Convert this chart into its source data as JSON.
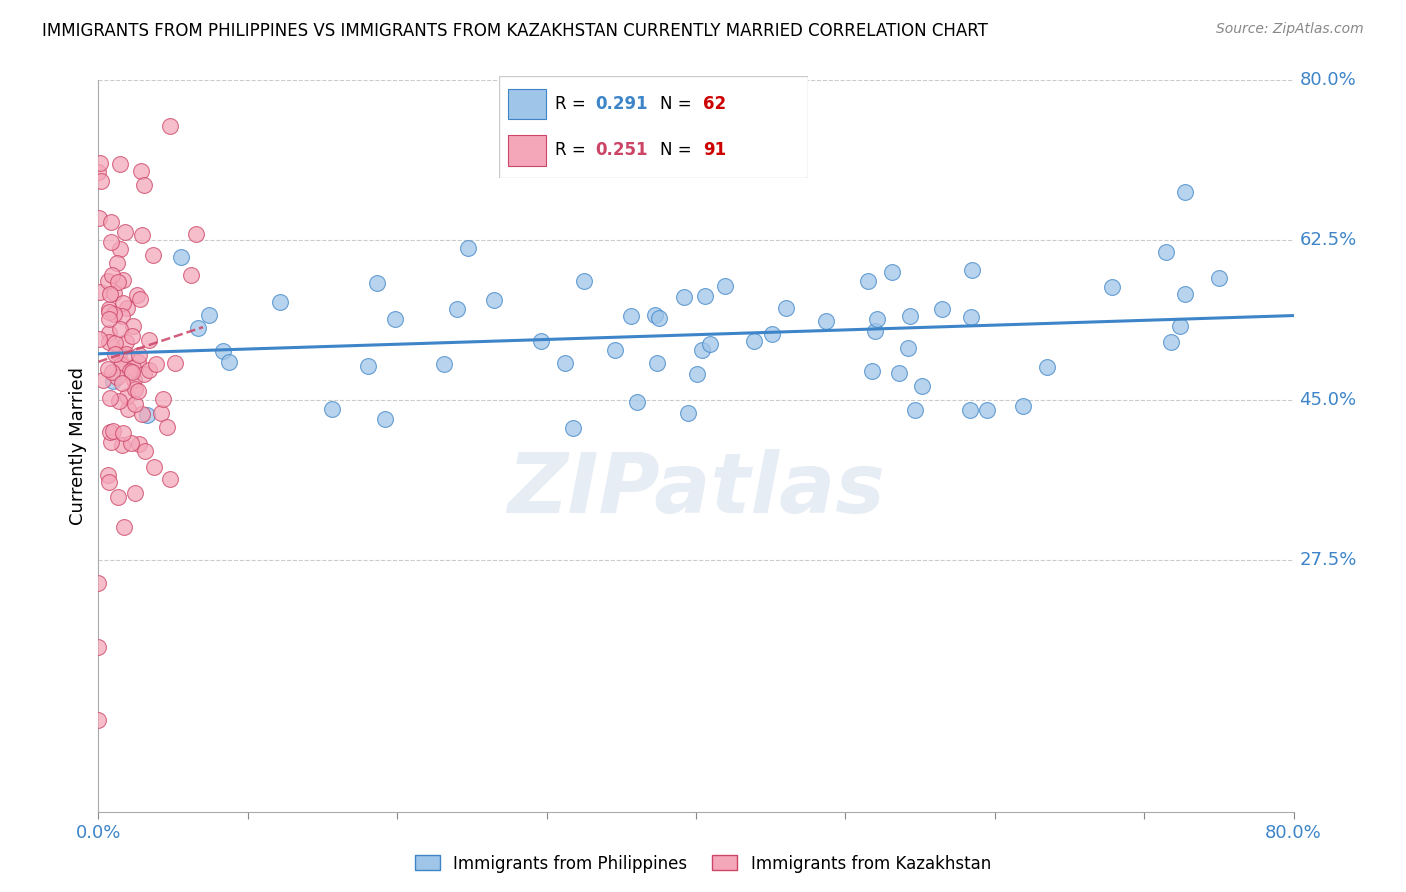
{
  "title": "IMMIGRANTS FROM PHILIPPINES VS IMMIGRANTS FROM KAZAKHSTAN CURRENTLY MARRIED CORRELATION CHART",
  "source": "Source: ZipAtlas.com",
  "ylabel": "Currently Married",
  "watermark": "ZIPatlas",
  "legend1_label": "Immigrants from Philippines",
  "legend2_label": "Immigrants from Kazakhstan",
  "R1": 0.291,
  "N1": 62,
  "R2": 0.251,
  "N2": 91,
  "color1": "#9fc5e8",
  "color2": "#f4a7b9",
  "trend1_color": "#3d85c8",
  "trend2_color": "#cc4466",
  "xlim_max": 0.8,
  "ylim_max": 0.8,
  "ytick_vals": [
    0.275,
    0.45,
    0.625,
    0.8
  ],
  "ytick_labels": [
    "27.5%",
    "45.0%",
    "62.5%",
    "80.0%"
  ],
  "xtick_labels": [
    "0.0%",
    "",
    "",
    "",
    "",
    "",
    "",
    "",
    "80.0%"
  ]
}
